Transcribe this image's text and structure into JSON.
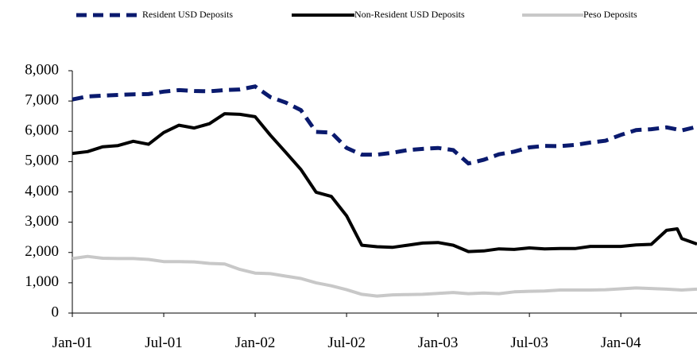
{
  "chart_data": {
    "type": "line",
    "title": "",
    "xlabel": "",
    "ylabel": "",
    "ylim": [
      0,
      8000
    ],
    "yticks": [
      0,
      1000,
      2000,
      3000,
      4000,
      5000,
      6000,
      7000,
      8000
    ],
    "ytick_labels": [
      "0",
      "1,000",
      "2,000",
      "3,000",
      "4,000",
      "5,000",
      "6,000",
      "7,000",
      "8,000"
    ],
    "xtick_labels": [
      "Jan-01",
      "Jul-01",
      "Jan-02",
      "Jul-02",
      "Jan-03",
      "Jul-03",
      "Jan-04"
    ],
    "xtick_months": [
      0,
      6,
      12,
      18,
      24,
      30,
      36
    ],
    "x_months_end": 41,
    "grid": false,
    "legend": "top",
    "series": [
      {
        "name": "Resident USD Deposits",
        "color": "#0a1a6e",
        "style": "dashed",
        "x": [
          0,
          1,
          2,
          3,
          4,
          5,
          6,
          7,
          8,
          9,
          10,
          11,
          12,
          13,
          14,
          15,
          16,
          17,
          18,
          19,
          20,
          21,
          22,
          23,
          24,
          25,
          26,
          27,
          28,
          29,
          30,
          31,
          32,
          33,
          34,
          35,
          36,
          37,
          38,
          39,
          40,
          41
        ],
        "values": [
          7050,
          7150,
          7180,
          7200,
          7220,
          7230,
          7310,
          7360,
          7330,
          7320,
          7360,
          7380,
          7480,
          7130,
          6950,
          6700,
          5980,
          5960,
          5450,
          5230,
          5230,
          5290,
          5380,
          5420,
          5450,
          5380,
          4940,
          5060,
          5240,
          5330,
          5470,
          5520,
          5510,
          5550,
          5630,
          5690,
          5880,
          6040,
          6070,
          6130,
          6030,
          6150
        ]
      },
      {
        "name": "Non-Resident USD Deposits",
        "color": "#000000",
        "style": "solid",
        "x": [
          0,
          1,
          2,
          3,
          4,
          5,
          6,
          7,
          8,
          9,
          10,
          11,
          12,
          13,
          14,
          15,
          16,
          17,
          18,
          19,
          20,
          21,
          22,
          23,
          24,
          25,
          26,
          27,
          28,
          29,
          30,
          31,
          32,
          33,
          34,
          35,
          36,
          37,
          38,
          39,
          39.7,
          40,
          41
        ],
        "values": [
          5270,
          5330,
          5490,
          5530,
          5670,
          5570,
          5960,
          6200,
          6110,
          6250,
          6580,
          6560,
          6480,
          5870,
          5310,
          4740,
          3990,
          3850,
          3210,
          2240,
          2190,
          2170,
          2240,
          2310,
          2330,
          2240,
          2030,
          2050,
          2120,
          2100,
          2150,
          2120,
          2130,
          2130,
          2200,
          2200,
          2200,
          2250,
          2270,
          2730,
          2780,
          2460,
          2280
        ]
      },
      {
        "name": "Peso Deposits",
        "color": "#c8c8c8",
        "style": "solid",
        "x": [
          0,
          1,
          2,
          3,
          4,
          5,
          6,
          7,
          8,
          9,
          10,
          11,
          12,
          13,
          14,
          15,
          16,
          17,
          18,
          19,
          20,
          21,
          22,
          23,
          24,
          25,
          26,
          27,
          28,
          29,
          30,
          31,
          32,
          33,
          34,
          35,
          36,
          37,
          38,
          39,
          40,
          41
        ],
        "values": [
          1800,
          1870,
          1810,
          1800,
          1800,
          1770,
          1700,
          1700,
          1690,
          1640,
          1620,
          1440,
          1320,
          1300,
          1220,
          1140,
          1000,
          900,
          770,
          620,
          560,
          600,
          610,
          620,
          650,
          680,
          640,
          660,
          640,
          700,
          720,
          730,
          760,
          760,
          760,
          770,
          800,
          830,
          810,
          790,
          760,
          790
        ]
      }
    ]
  }
}
